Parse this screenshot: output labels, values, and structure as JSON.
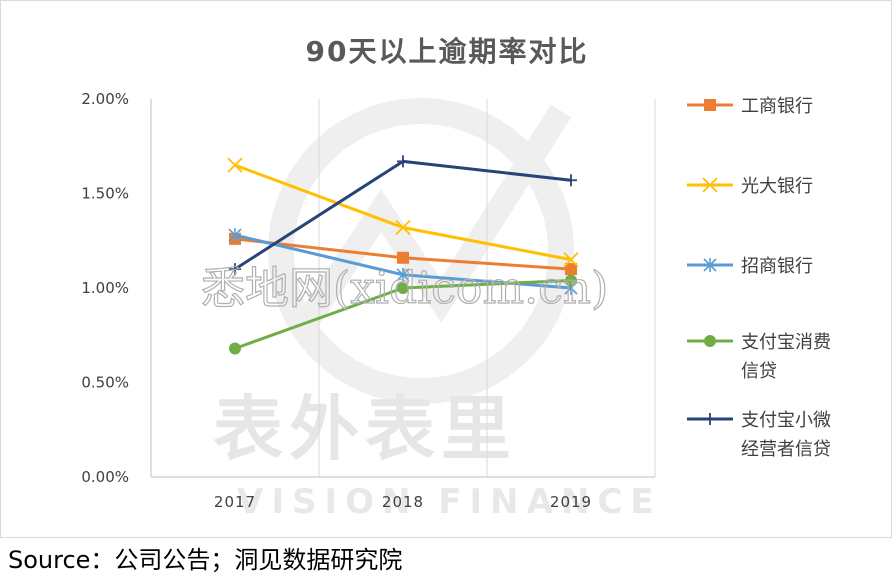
{
  "chart_data": {
    "type": "line",
    "title": "90天以上逾期率对比",
    "categories": [
      "2017",
      "2018",
      "2019"
    ],
    "y_ticks": [
      "0.00%",
      "0.50%",
      "1.00%",
      "1.50%",
      "2.00%"
    ],
    "ylim": [
      0,
      2.0
    ],
    "y_unit": "%",
    "grid": "vertical",
    "legend_position": "right",
    "series": [
      {
        "name": "工商银行",
        "values": [
          1.26,
          1.16,
          1.1
        ],
        "color": "#ED7D31",
        "marker": "square"
      },
      {
        "name": "光大银行",
        "values": [
          1.65,
          1.32,
          1.15
        ],
        "color": "#FFC000",
        "marker": "x"
      },
      {
        "name": "招商银行",
        "values": [
          1.28,
          1.07,
          1.0
        ],
        "color": "#5B9BD5",
        "marker": "star"
      },
      {
        "name": "支付宝消费信贷",
        "name_lines": [
          "支付宝消费",
          "信贷"
        ],
        "values": [
          0.68,
          1.0,
          1.04
        ],
        "color": "#70AD47",
        "marker": "circle"
      },
      {
        "name": "支付宝小微经营者信贷",
        "name_lines": [
          "支付宝小微",
          "经营者信贷"
        ],
        "values": [
          1.1,
          1.67,
          1.57
        ],
        "color": "#264478",
        "marker": "plus"
      }
    ]
  },
  "watermark": {
    "cn": "表外表里",
    "en": "VISION FINANCE",
    "web": "悉地网(xidicom.cn)"
  },
  "footer": {
    "source": "Source：公司公告；洞见数据研究院"
  }
}
